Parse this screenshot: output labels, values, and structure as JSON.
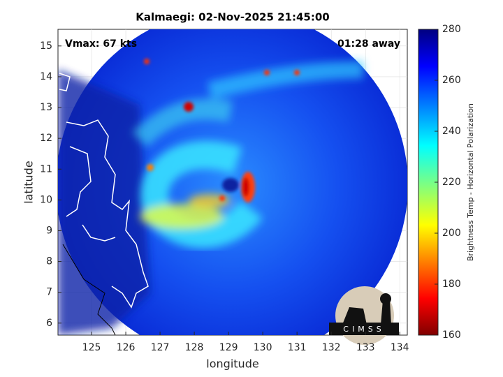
{
  "chart_data": {
    "type": "map",
    "title": "Kalmaegi: 02-Nov-2025 21:45:00",
    "annotations": [
      "Vmax: 67 kts",
      "01:28 away"
    ],
    "xlabel": "longitude",
    "ylabel": "latitude",
    "xlim": [
      124.02,
      134.22
    ],
    "xticks": [
      125,
      126,
      127,
      128,
      129,
      130,
      131,
      132,
      133,
      134
    ],
    "ylim": [
      5.61,
      15.54
    ],
    "yticks": [
      6,
      7,
      8,
      9,
      10,
      11,
      12,
      13,
      14,
      15
    ],
    "grid": true,
    "colorbar": {
      "label": "Brightness Temp - Horizontal Polarization",
      "clim": [
        160,
        280
      ],
      "ticks": [
        160,
        180,
        200,
        220,
        240,
        260,
        280
      ],
      "colormap": "jet"
    },
    "logo": "CIMSS"
  }
}
